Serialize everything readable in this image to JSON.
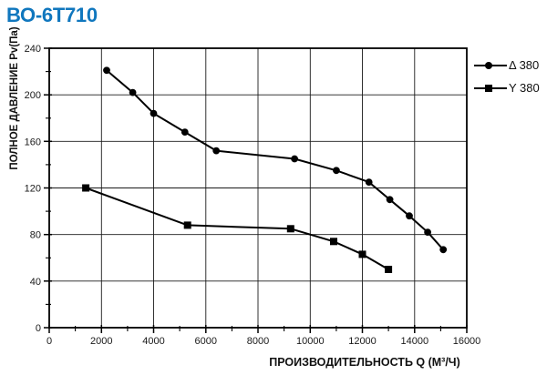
{
  "page": {
    "title": "ВО-6Т710",
    "title_color": "#1077BE"
  },
  "chart_data": {
    "type": "line",
    "title": "",
    "xlabel": "ПРОИЗВОДИТЕЛЬНОСТЬ Q (М³/Ч)",
    "ylabel": "ПОЛНОЕ ДАВЛЕНИЕ Pv(Па)",
    "xlim": [
      0,
      16000
    ],
    "ylim": [
      0,
      240
    ],
    "x_major_ticks": [
      0,
      2000,
      4000,
      6000,
      8000,
      10000,
      12000,
      14000,
      16000
    ],
    "x_minor_step": 1000,
    "y_major_ticks": [
      0,
      40,
      80,
      120,
      160,
      200,
      240
    ],
    "y_minor_step": 20,
    "grid": true,
    "legend_position": "outside-top-right",
    "line_color": "#000000",
    "series": [
      {
        "name": "Δ 380",
        "marker": "circle",
        "points": [
          [
            2200,
            221
          ],
          [
            3200,
            202
          ],
          [
            4000,
            184
          ],
          [
            5200,
            168
          ],
          [
            6400,
            152
          ],
          [
            9400,
            145
          ],
          [
            11000,
            135
          ],
          [
            12250,
            125
          ],
          [
            13050,
            110
          ],
          [
            13800,
            96
          ],
          [
            14500,
            82
          ],
          [
            15100,
            67
          ]
        ]
      },
      {
        "name": "Y 380",
        "marker": "square",
        "points": [
          [
            1400,
            120
          ],
          [
            5300,
            88
          ],
          [
            9250,
            85
          ],
          [
            10900,
            74
          ],
          [
            12000,
            63
          ],
          [
            13000,
            50
          ]
        ]
      }
    ]
  }
}
